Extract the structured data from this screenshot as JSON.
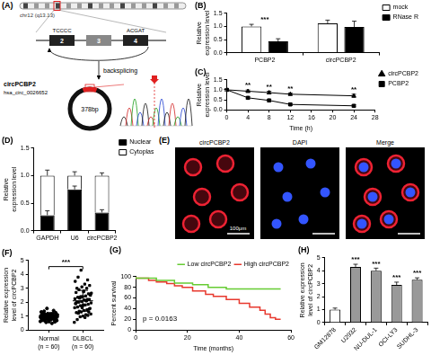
{
  "diagram": {
    "panel": "(A)",
    "chromosome": "chr12 (q13.13)",
    "exons": [
      "2",
      "3",
      "4"
    ],
    "sequence_left": "TCCCC",
    "sequence_right": "ACGAT",
    "arrow_label": "backsplicing",
    "circ_name": "circPCBP2",
    "circ_id": "hsa_circ_0026652",
    "circ_length": "378bp"
  },
  "chart_data": [
    {
      "panel": "(B)",
      "type": "bar",
      "categories": [
        "PCBP2",
        "circPCBP2"
      ],
      "series": [
        {
          "name": "mock",
          "color": "#ffffff",
          "values": [
            1.0,
            1.12
          ],
          "errors": [
            0.08,
            0.12
          ]
        },
        {
          "name": "RNase R",
          "color": "#000000",
          "values": [
            0.43,
            0.98
          ],
          "errors": [
            0.1,
            0.22
          ]
        }
      ],
      "y_label": "Relative expression level",
      "ylim": [
        0,
        1.5
      ],
      "yticks": [
        {
          "value": 0,
          "label": "0.0"
        },
        {
          "value": 0.5,
          "label": "0.5"
        },
        {
          "value": 1,
          "label": "1.0"
        },
        {
          "value": 1.5,
          "label": "1.5"
        }
      ],
      "grid": false,
      "legend": "right",
      "annotations": [
        {
          "category": "PCBP2",
          "text": "***"
        }
      ]
    },
    {
      "panel": "(C)",
      "type": "line",
      "x": [
        0,
        4,
        8,
        12,
        24
      ],
      "series": [
        {
          "name": "circPCBP2",
          "color": "#000000",
          "marker": "triangle",
          "values": [
            1.0,
            0.93,
            0.86,
            0.78,
            0.7
          ],
          "errors": [
            0.05,
            0.06,
            0.07,
            0.06,
            0.08
          ]
        },
        {
          "name": "PCBP2",
          "color": "#000000",
          "marker": "square",
          "values": [
            1.0,
            0.6,
            0.47,
            0.27,
            0.2
          ],
          "errors": [
            0.05,
            0.05,
            0.06,
            0.05,
            0.05
          ]
        }
      ],
      "x_label": "Time (h)",
      "y_label": "Relative expression level",
      "xlim": [
        0,
        28
      ],
      "xticks": [
        0,
        4,
        8,
        12,
        16,
        20,
        24,
        28
      ],
      "ylim": [
        0,
        1.5
      ],
      "yticks": [
        {
          "value": 0,
          "label": "0.0"
        },
        {
          "value": 0.5,
          "label": "0.5"
        },
        {
          "value": 1,
          "label": "1.0"
        },
        {
          "value": 1.5,
          "label": "1.5"
        }
      ],
      "grid": false,
      "legend": "right",
      "annotations": [
        {
          "x": 4,
          "text": "**"
        },
        {
          "x": 8,
          "text": "**"
        },
        {
          "x": 12,
          "text": "**"
        },
        {
          "x": 24,
          "text": "**"
        }
      ]
    },
    {
      "panel": "(D)",
      "type": "bar",
      "stacked": true,
      "categories": [
        "GAPDH",
        "U6",
        "circPCBP2"
      ],
      "series": [
        {
          "name": "Nuclear",
          "color": "#000000",
          "values": [
            0.28,
            0.75,
            0.33
          ],
          "errors": [
            0.08,
            0.06,
            0.05
          ]
        },
        {
          "name": "Cytoplasm",
          "color": "#ffffff",
          "values": [
            0.72,
            0.25,
            0.67
          ],
          "errors": [
            0.1,
            0.07,
            0.05
          ]
        }
      ],
      "y_label": "Relative expression level",
      "ylim": [
        0,
        1.5
      ],
      "yticks": [
        {
          "value": 0,
          "label": "0.0"
        },
        {
          "value": 0.5,
          "label": "0.5"
        },
        {
          "value": 1,
          "label": "1.0"
        },
        {
          "value": 1.5,
          "label": "1.5"
        }
      ],
      "grid": false,
      "legend": "right"
    },
    {
      "panel": "(F)",
      "type": "dot_plot",
      "categories": [
        "Normal (n = 60)",
        "DLBCL (n = 60)"
      ],
      "values": [
        [
          0.62,
          0.75,
          0.81,
          0.88,
          0.93,
          0.97,
          1.02,
          1.05,
          1.1,
          1.15,
          0.7,
          0.78,
          0.85,
          0.9,
          0.95,
          1.0,
          1.04,
          1.08,
          1.12,
          1.2,
          0.55,
          0.68,
          0.8,
          0.86,
          0.92,
          0.98,
          1.03,
          1.07,
          1.14,
          1.25,
          0.6,
          0.72,
          0.83,
          0.89,
          0.94,
          0.99,
          1.01,
          1.06,
          1.18,
          1.3,
          0.48,
          0.66,
          0.79,
          0.87,
          0.91,
          0.96,
          1.0,
          1.09,
          1.16,
          1.35,
          0.58,
          0.74,
          0.82,
          0.9,
          0.95,
          1.03,
          1.11,
          1.22,
          1.4,
          1.55
        ],
        [
          0.55,
          0.9,
          1.2,
          1.5,
          1.7,
          1.9,
          2.1,
          2.3,
          2.5,
          2.8,
          0.75,
          1.05,
          1.3,
          1.6,
          1.8,
          2.0,
          2.2,
          2.4,
          2.7,
          3.0,
          0.95,
          1.15,
          1.4,
          1.65,
          1.85,
          2.05,
          2.25,
          2.45,
          2.9,
          3.2,
          1.0,
          1.25,
          1.45,
          1.75,
          1.95,
          2.15,
          2.35,
          2.6,
          3.1,
          3.5,
          1.1,
          1.35,
          1.55,
          1.8,
          2.0,
          2.2,
          2.4,
          2.65,
          3.3,
          3.8,
          1.3,
          1.6,
          1.9,
          2.1,
          2.3,
          2.55,
          2.75,
          3.0,
          3.6,
          4.3
        ]
      ],
      "mean": [
        0.98,
        2.1
      ],
      "sd": [
        0.22,
        0.75
      ],
      "color": "#000000",
      "y_label": "Relative expression level of circPCBP2",
      "ylim": [
        0,
        5
      ],
      "yticks": [
        0,
        1,
        2,
        3,
        4,
        5
      ],
      "grid": false,
      "annotations": [
        {
          "between": [
            "Normal (n = 60)",
            "DLBCL (n = 60)"
          ],
          "text": "***"
        }
      ]
    },
    {
      "panel": "(G)",
      "type": "line",
      "line_style": "steps",
      "series": [
        {
          "name": "Low circPCBP2",
          "color": "#66cc33",
          "x": [
            0,
            8,
            15,
            22,
            28,
            35,
            40,
            56
          ],
          "values": [
            100,
            97,
            93,
            88,
            85,
            80,
            77,
            77
          ]
        },
        {
          "name": "High circPCBP2",
          "color": "#e8392e",
          "x": [
            0,
            5,
            8,
            12,
            15,
            18,
            22,
            27,
            30,
            35,
            40,
            44,
            48,
            50,
            52,
            54,
            56
          ],
          "values": [
            100,
            97,
            93,
            90,
            87,
            83,
            80,
            73,
            67,
            63,
            57,
            50,
            43,
            37,
            30,
            23,
            20
          ]
        }
      ],
      "x_label": "Time (months)",
      "y_label": "Percent survival",
      "xlim": [
        0,
        60
      ],
      "xticks": [
        0,
        20,
        40,
        60
      ],
      "ylim": [
        0,
        100
      ],
      "yticks": [
        0,
        20,
        40,
        60,
        80,
        100
      ],
      "grid": false,
      "legend": "top-right",
      "annotation": "p = 0.0163"
    },
    {
      "panel": "(H)",
      "type": "bar",
      "categories": [
        "GM12878",
        "U2932",
        "NU-DUL-1",
        "OCI-LY3",
        "SUDHL-3"
      ],
      "values": [
        1.0,
        4.3,
        4.0,
        2.9,
        3.3
      ],
      "errors": [
        0.12,
        0.2,
        0.2,
        0.22,
        0.15
      ],
      "colors": [
        "#ffffff",
        "#999999",
        "#999999",
        "#999999",
        "#999999"
      ],
      "y_label": "Relative expression level of circPCBP2",
      "ylim": [
        0,
        5
      ],
      "yticks": [
        0,
        1,
        2,
        3,
        4,
        5
      ],
      "grid": false,
      "annotations": [
        {
          "category": "U2932",
          "text": "***"
        },
        {
          "category": "NU-DUL-1",
          "text": "***"
        },
        {
          "category": "OCI-LY3",
          "text": "***"
        },
        {
          "category": "SUDHL-3",
          "text": "***"
        }
      ]
    }
  ],
  "micrograph": {
    "panel": "(E)",
    "channels": [
      "circPCBP2",
      "DAPI",
      "Merge"
    ],
    "scale_bar": "100μm"
  }
}
